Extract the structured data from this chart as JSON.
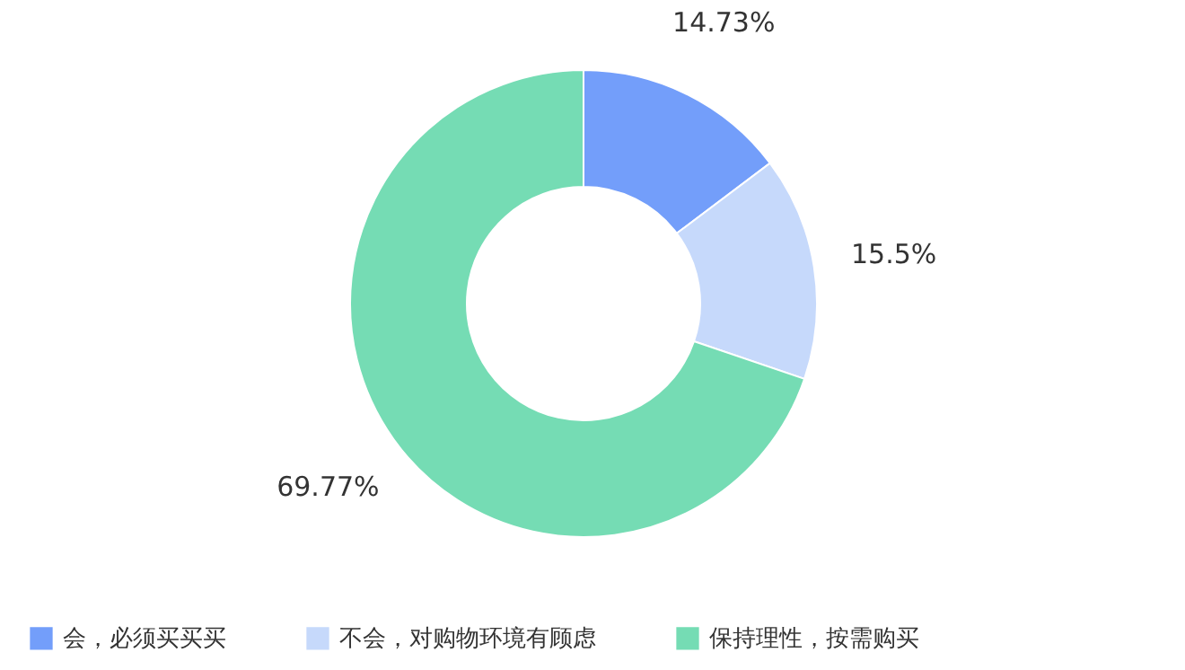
{
  "chart_data": {
    "type": "donut",
    "categories": [
      "会，必须买买买",
      "不会，对购物环境有顾虑",
      "保持理性，按需购买"
    ],
    "values": [
      14.73,
      15.5,
      69.77
    ],
    "value_labels": [
      "14.73%",
      "15.5%",
      "69.77%"
    ],
    "colors": [
      "#739efa",
      "#c6d9fb",
      "#75dcb4"
    ],
    "legend": "bottom"
  }
}
